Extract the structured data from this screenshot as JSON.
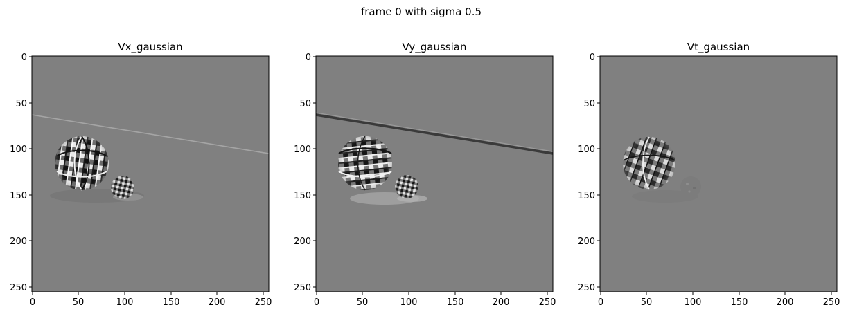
{
  "figure": {
    "suptitle": "frame 0 with sigma 0.5"
  },
  "panels": [
    {
      "title": "Vx_gaussian"
    },
    {
      "title": "Vy_gaussian"
    },
    {
      "title": "Vt_gaussian"
    }
  ],
  "axes": {
    "x_ticks": [
      "0",
      "50",
      "100",
      "150",
      "200",
      "250"
    ],
    "y_ticks": [
      "0",
      "50",
      "100",
      "150",
      "200",
      "250"
    ],
    "range": [
      0,
      256
    ]
  },
  "colors": {
    "background_gray": "#808080",
    "page": "#ffffff"
  }
}
